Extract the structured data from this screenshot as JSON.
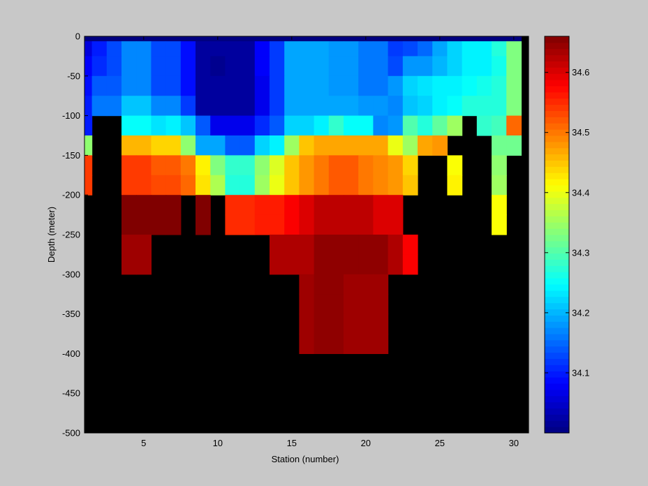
{
  "chart_data": {
    "type": "heatmap",
    "title": "",
    "xlabel": "Station (number)",
    "ylabel": "Depth (meter)",
    "xlim": [
      1,
      31
    ],
    "ylim": [
      -500,
      0
    ],
    "x_ticks": [
      5,
      10,
      15,
      20,
      25,
      30
    ],
    "y_ticks": [
      0,
      -50,
      -100,
      -150,
      -200,
      -250,
      -300,
      -350,
      -400,
      -450,
      -500
    ],
    "colorbar": {
      "range": [
        34.0,
        34.66
      ],
      "ticks": [
        34.1,
        34.2,
        34.3,
        34.4,
        34.5,
        34.6
      ],
      "colormap": "jet"
    },
    "no_data_color": "#000000",
    "grid": false,
    "stations": [
      1,
      2,
      3,
      4,
      5,
      6,
      7,
      8,
      9,
      10,
      11,
      12,
      13,
      14,
      15,
      16,
      17,
      18,
      19,
      20,
      21,
      22,
      23,
      24,
      25,
      26,
      27,
      28,
      29,
      30
    ],
    "depth_bins_m": [
      0,
      -12.5,
      -37.5,
      -62.5,
      -87.5,
      -112.5,
      -137.5,
      -162.5,
      -187.5,
      -212.5,
      -237.5,
      -262.5,
      -287.5,
      -312.5,
      -337.5,
      -362.5,
      -387.5,
      -412.5,
      -437.5,
      -462.5,
      -487.5
    ],
    "salinity": [
      [
        34.0,
        34.0,
        34.0,
        34.0,
        34.0,
        34.0,
        34.0,
        34.0,
        34.0,
        34.0,
        34.0,
        34.0,
        34.0,
        34.0,
        34.0,
        34.0,
        34.0,
        34.0,
        34.0,
        34.0,
        34.0,
        34.0,
        34.0,
        34.0,
        34.0,
        34.0,
        34.0,
        34.0,
        34.0,
        34.0
      ],
      [
        34.06,
        34.1,
        34.13,
        34.17,
        34.17,
        34.13,
        34.13,
        34.09,
        34.02,
        34.02,
        34.02,
        34.02,
        34.08,
        34.12,
        34.19,
        34.19,
        34.19,
        34.18,
        34.18,
        34.16,
        34.16,
        34.12,
        34.13,
        34.15,
        34.19,
        34.22,
        34.24,
        34.24,
        34.27,
        34.33
      ],
      [
        34.08,
        34.11,
        34.13,
        34.17,
        34.17,
        34.13,
        34.13,
        34.09,
        34.02,
        34.01,
        34.02,
        34.02,
        34.08,
        34.12,
        34.19,
        34.19,
        34.19,
        34.18,
        34.18,
        34.16,
        34.16,
        34.13,
        34.18,
        34.18,
        34.2,
        34.22,
        34.24,
        34.24,
        34.26,
        34.33
      ],
      [
        34.09,
        34.14,
        34.14,
        34.17,
        34.17,
        34.13,
        34.13,
        34.09,
        34.02,
        34.02,
        34.02,
        34.02,
        34.07,
        34.12,
        34.19,
        34.19,
        34.19,
        34.18,
        34.18,
        34.16,
        34.16,
        34.18,
        34.22,
        34.23,
        34.24,
        34.24,
        34.25,
        34.26,
        34.27,
        34.33
      ],
      [
        34.1,
        34.16,
        34.16,
        34.21,
        34.21,
        34.17,
        34.17,
        34.12,
        34.02,
        34.02,
        34.02,
        34.02,
        34.07,
        34.12,
        34.19,
        34.19,
        34.19,
        34.19,
        34.19,
        34.18,
        34.18,
        34.17,
        34.21,
        34.22,
        34.24,
        34.25,
        34.27,
        34.27,
        34.27,
        34.33
      ],
      [
        34.1,
        null,
        null,
        34.25,
        34.25,
        34.23,
        34.24,
        34.21,
        34.14,
        34.07,
        34.07,
        34.07,
        34.11,
        34.14,
        34.22,
        34.22,
        34.24,
        34.28,
        34.25,
        34.25,
        34.17,
        34.18,
        34.3,
        34.27,
        34.31,
        34.35,
        null,
        34.28,
        34.29,
        34.51
      ],
      [
        34.34,
        null,
        null,
        34.46,
        34.46,
        34.44,
        34.44,
        34.34,
        34.19,
        34.19,
        34.14,
        34.14,
        34.22,
        34.24,
        34.35,
        34.45,
        34.47,
        34.47,
        34.47,
        34.47,
        34.47,
        34.4,
        34.35,
        34.47,
        34.48,
        null,
        null,
        null,
        34.32,
        34.32
      ],
      [
        34.54,
        null,
        null,
        34.54,
        34.54,
        34.52,
        34.52,
        34.5,
        34.42,
        34.33,
        34.28,
        34.28,
        34.34,
        34.39,
        34.45,
        34.48,
        34.5,
        34.52,
        34.52,
        34.5,
        34.49,
        34.48,
        34.44,
        null,
        null,
        34.41,
        null,
        null,
        34.34,
        null
      ],
      [
        34.54,
        null,
        null,
        34.54,
        34.54,
        34.53,
        34.53,
        34.51,
        34.43,
        34.36,
        34.27,
        34.27,
        34.35,
        34.4,
        34.45,
        34.48,
        34.5,
        34.52,
        34.52,
        34.5,
        34.49,
        34.48,
        34.45,
        null,
        null,
        34.42,
        null,
        null,
        34.35,
        null
      ],
      [
        null,
        null,
        null,
        34.66,
        34.66,
        34.66,
        34.66,
        null,
        34.66,
        null,
        34.55,
        34.55,
        34.56,
        34.56,
        34.58,
        34.6,
        34.62,
        34.62,
        34.62,
        34.62,
        34.6,
        34.6,
        null,
        null,
        null,
        null,
        null,
        null,
        34.41,
        null
      ],
      [
        null,
        null,
        null,
        34.66,
        34.66,
        34.66,
        34.66,
        null,
        34.66,
        null,
        34.55,
        34.55,
        34.56,
        34.56,
        34.58,
        34.6,
        34.62,
        34.62,
        34.62,
        34.62,
        34.6,
        34.6,
        null,
        null,
        null,
        null,
        null,
        null,
        34.41,
        null
      ],
      [
        null,
        null,
        null,
        34.64,
        34.64,
        null,
        null,
        null,
        null,
        null,
        null,
        null,
        null,
        34.63,
        34.63,
        34.63,
        34.65,
        34.65,
        34.65,
        34.65,
        34.65,
        34.63,
        34.58,
        null,
        null,
        null,
        null,
        null,
        null,
        null
      ],
      [
        null,
        null,
        null,
        34.64,
        34.64,
        null,
        null,
        null,
        null,
        null,
        null,
        null,
        null,
        34.63,
        34.63,
        34.63,
        34.65,
        34.65,
        34.65,
        34.65,
        34.65,
        34.63,
        34.58,
        null,
        null,
        null,
        null,
        null,
        null,
        null
      ],
      [
        null,
        null,
        null,
        null,
        null,
        null,
        null,
        null,
        null,
        null,
        null,
        null,
        null,
        null,
        null,
        34.64,
        34.65,
        34.65,
        34.64,
        34.64,
        34.64,
        null,
        null,
        null,
        null,
        null,
        null,
        null,
        null,
        null
      ],
      [
        null,
        null,
        null,
        null,
        null,
        null,
        null,
        null,
        null,
        null,
        null,
        null,
        null,
        null,
        null,
        34.64,
        34.65,
        34.65,
        34.64,
        34.64,
        34.64,
        null,
        null,
        null,
        null,
        null,
        null,
        null,
        null,
        null
      ],
      [
        null,
        null,
        null,
        null,
        null,
        null,
        null,
        null,
        null,
        null,
        null,
        null,
        null,
        null,
        null,
        34.64,
        34.65,
        34.65,
        34.64,
        34.64,
        34.64,
        null,
        null,
        null,
        null,
        null,
        null,
        null,
        null,
        null
      ],
      [
        null,
        null,
        null,
        null,
        null,
        null,
        null,
        null,
        null,
        null,
        null,
        null,
        null,
        null,
        null,
        34.64,
        34.65,
        34.65,
        34.64,
        34.64,
        34.64,
        null,
        null,
        null,
        null,
        null,
        null,
        null,
        null,
        null
      ],
      [
        null,
        null,
        null,
        null,
        null,
        null,
        null,
        null,
        null,
        null,
        null,
        null,
        null,
        null,
        null,
        null,
        null,
        null,
        null,
        null,
        null,
        null,
        null,
        null,
        null,
        null,
        null,
        null,
        null,
        null
      ],
      [
        null,
        null,
        null,
        null,
        null,
        null,
        null,
        null,
        null,
        null,
        null,
        null,
        null,
        null,
        null,
        null,
        null,
        null,
        null,
        null,
        null,
        null,
        null,
        null,
        null,
        null,
        null,
        null,
        null,
        null
      ],
      [
        null,
        null,
        null,
        null,
        null,
        null,
        null,
        null,
        null,
        null,
        null,
        null,
        null,
        null,
        null,
        null,
        null,
        null,
        null,
        null,
        null,
        null,
        null,
        null,
        null,
        null,
        null,
        null,
        null,
        null
      ],
      [
        null,
        null,
        null,
        null,
        null,
        null,
        null,
        null,
        null,
        null,
        null,
        null,
        null,
        null,
        null,
        null,
        null,
        null,
        null,
        null,
        null,
        null,
        null,
        null,
        null,
        null,
        null,
        null,
        null,
        null
      ]
    ]
  }
}
